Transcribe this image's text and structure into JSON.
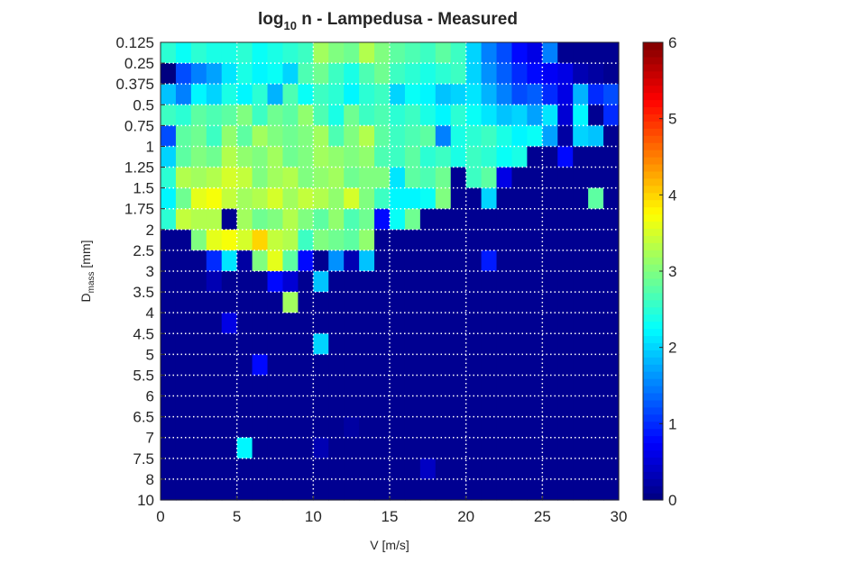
{
  "chart_data": {
    "type": "heatmap",
    "title": {
      "prefix": "log",
      "subscript": "10",
      "rest": " n - Lampedusa - Measured"
    },
    "xlabel": "V [m/s]",
    "ylabel": {
      "main": "D",
      "subscript": "mass",
      "rest": " [mm]"
    },
    "xlim": [
      0,
      30
    ],
    "xticks": [
      "0",
      "5",
      "10",
      "15",
      "20",
      "25",
      "30"
    ],
    "ylim": [
      0,
      22
    ],
    "y_bins": [
      "0.125",
      "0.25",
      "0.375",
      "0.5",
      "0.75",
      "1",
      "1.25",
      "1.5",
      "1.75",
      "2",
      "2.5",
      "3",
      "3.5",
      "4",
      "4.5",
      "5",
      "5.5",
      "6",
      "6.5",
      "7",
      "7.5",
      "8",
      "10"
    ],
    "x_bins": [
      0,
      1,
      2,
      3,
      4,
      5,
      6,
      7,
      8,
      9,
      10,
      11,
      12,
      13,
      14,
      15,
      16,
      17,
      18,
      19,
      20,
      21,
      22,
      23,
      24,
      25,
      26,
      27,
      28,
      29,
      30
    ],
    "grid": true,
    "colormap": "jet",
    "colorbar": {
      "min": 0,
      "max": 6,
      "ticks": [
        "0",
        "1",
        "2",
        "3",
        "4",
        "5",
        "6"
      ]
    },
    "colors": {
      "background": "#00007f",
      "axis": "#262626",
      "grid": "#ffffff"
    },
    "values": [
      [
        2.5,
        2.3,
        2.5,
        2.4,
        2.4,
        2.5,
        2.3,
        2.4,
        2.5,
        2.6,
        3.2,
        3.0,
        2.9,
        3.3,
        3.0,
        2.8,
        2.7,
        2.6,
        2.8,
        2.6,
        2.0,
        1.5,
        1.2,
        0.8,
        0.6,
        1.5,
        0.1,
        0.1,
        0.1,
        0.1
      ],
      [
        0.0,
        1.2,
        1.5,
        1.7,
        2.1,
        2.4,
        2.2,
        2.3,
        2.0,
        2.7,
        2.9,
        2.6,
        2.4,
        2.7,
        2.9,
        2.6,
        2.5,
        2.4,
        2.5,
        2.6,
        2.0,
        1.6,
        1.3,
        1.0,
        0.8,
        0.7,
        0.6,
        0.3,
        0.2,
        0.1
      ],
      [
        1.9,
        1.5,
        2.2,
        2.0,
        2.4,
        2.2,
        2.5,
        1.8,
        2.7,
        2.3,
        2.6,
        2.5,
        2.2,
        2.5,
        2.6,
        2.0,
        2.3,
        2.2,
        1.9,
        2.0,
        2.1,
        1.8,
        1.5,
        1.2,
        1.3,
        1.0,
        0.6,
        1.8,
        1.0,
        1.2
      ],
      [
        2.6,
        2.5,
        2.8,
        2.7,
        2.8,
        3.0,
        2.6,
        2.9,
        2.8,
        3.1,
        2.7,
        2.4,
        2.9,
        2.6,
        2.7,
        2.5,
        2.6,
        2.4,
        2.2,
        2.5,
        2.3,
        2.1,
        1.9,
        2.0,
        1.7,
        2.1,
        0.5,
        2.2,
        0.1,
        1.0
      ],
      [
        1.2,
        2.8,
        2.9,
        2.6,
        3.1,
        2.8,
        3.2,
        3.0,
        2.9,
        3.0,
        3.2,
        2.7,
        3.0,
        3.3,
        2.8,
        2.6,
        2.7,
        2.8,
        1.5,
        2.4,
        2.5,
        2.6,
        2.4,
        2.2,
        2.3,
        1.7,
        0.2,
        2.0,
        1.9,
        0.1
      ],
      [
        2.0,
        2.8,
        3.0,
        2.9,
        3.3,
        3.1,
        3.0,
        3.2,
        2.9,
        3.0,
        3.2,
        3.1,
        3.0,
        3.1,
        2.7,
        2.6,
        2.8,
        2.5,
        2.6,
        2.4,
        2.6,
        2.5,
        2.3,
        2.4,
        0.1,
        0.1,
        0.8,
        0.1,
        0.1,
        0.1
      ],
      [
        2.5,
        3.3,
        3.2,
        3.3,
        3.5,
        3.4,
        3.0,
        3.2,
        3.3,
        3.0,
        3.1,
        3.2,
        2.9,
        3.0,
        3.0,
        2.1,
        2.8,
        2.7,
        2.9,
        0.1,
        2.6,
        2.8,
        0.6,
        0.1,
        0.1,
        0.1,
        0.1,
        0.1,
        0.1,
        0.1
      ],
      [
        2.2,
        2.9,
        3.6,
        3.7,
        3.4,
        3.2,
        3.3,
        3.5,
        3.2,
        3.4,
        3.3,
        3.1,
        3.5,
        3.0,
        2.6,
        2.2,
        2.2,
        2.3,
        3.0,
        0.1,
        0.1,
        2.0,
        0.1,
        0.1,
        0.1,
        0.1,
        0.1,
        0.1,
        2.8,
        0.1
      ],
      [
        2.5,
        3.4,
        3.3,
        3.3,
        0.1,
        3.2,
        2.9,
        3.0,
        3.3,
        3.0,
        2.8,
        3.1,
        2.7,
        2.9,
        0.8,
        2.3,
        2.9,
        0.1,
        0.1,
        0.1,
        0.1,
        0.1,
        0.1,
        0.1,
        0.1,
        0.1,
        0.1,
        0.1,
        0.1,
        0.1
      ],
      [
        0.1,
        0.1,
        3.0,
        3.6,
        3.7,
        3.5,
        4.0,
        3.4,
        3.3,
        2.6,
        3.0,
        2.9,
        2.8,
        3.1,
        0.1,
        0.1,
        0.1,
        0.1,
        0.1,
        0.1,
        0.1,
        0.1,
        0.1,
        0.1,
        0.1,
        0.1,
        0.1,
        0.1,
        0.1,
        0.1
      ],
      [
        0.1,
        0.1,
        0.1,
        1.0,
        2.1,
        0.2,
        3.0,
        3.6,
        2.8,
        0.8,
        0.1,
        1.6,
        0.3,
        1.9,
        0.1,
        0.1,
        0.1,
        0.1,
        0.1,
        0.1,
        0.1,
        0.9,
        0.1,
        0.1,
        0.1,
        0.1,
        0.1,
        0.1,
        0.1,
        0.1
      ],
      [
        0.1,
        0.1,
        0.1,
        0.3,
        0.1,
        0.1,
        0.1,
        0.8,
        0.5,
        0.1,
        1.9,
        0.1,
        0.1,
        0.1,
        0.1,
        0.1,
        0.1,
        0.1,
        0.1,
        0.1,
        0.1,
        0.1,
        0.1,
        0.1,
        0.1,
        0.1,
        0.1,
        0.1,
        0.1,
        0.1
      ],
      [
        0.1,
        0.1,
        0.1,
        0.1,
        0.1,
        0.1,
        0.1,
        0.1,
        3.2,
        0.1,
        0.1,
        0.1,
        0.1,
        0.1,
        0.1,
        0.1,
        0.1,
        0.1,
        0.1,
        0.1,
        0.1,
        0.1,
        0.1,
        0.1,
        0.1,
        0.1,
        0.1,
        0.1,
        0.1,
        0.1
      ],
      [
        0.1,
        0.1,
        0.1,
        0.1,
        0.6,
        0.1,
        0.1,
        0.1,
        0.1,
        0.1,
        0.1,
        0.1,
        0.1,
        0.1,
        0.1,
        0.1,
        0.1,
        0.1,
        0.1,
        0.1,
        0.1,
        0.1,
        0.1,
        0.1,
        0.1,
        0.1,
        0.1,
        0.1,
        0.1,
        0.1
      ],
      [
        0.1,
        0.1,
        0.1,
        0.1,
        0.1,
        0.1,
        0.1,
        0.1,
        0.1,
        0.1,
        2.0,
        0.1,
        0.1,
        0.1,
        0.1,
        0.1,
        0.1,
        0.1,
        0.1,
        0.1,
        0.1,
        0.1,
        0.1,
        0.1,
        0.1,
        0.1,
        0.1,
        0.1,
        0.1,
        0.1
      ],
      [
        0.1,
        0.1,
        0.1,
        0.1,
        0.1,
        0.1,
        0.8,
        0.1,
        0.1,
        0.1,
        0.1,
        0.1,
        0.1,
        0.1,
        0.1,
        0.1,
        0.1,
        0.1,
        0.1,
        0.1,
        0.1,
        0.1,
        0.1,
        0.1,
        0.1,
        0.1,
        0.1,
        0.1,
        0.1,
        0.1
      ],
      [
        0.1,
        0.1,
        0.1,
        0.1,
        0.1,
        0.1,
        0.1,
        0.1,
        0.1,
        0.1,
        0.1,
        0.1,
        0.1,
        0.1,
        0.1,
        0.1,
        0.1,
        0.1,
        0.1,
        0.1,
        0.1,
        0.1,
        0.1,
        0.1,
        0.1,
        0.1,
        0.1,
        0.1,
        0.1,
        0.1
      ],
      [
        0.1,
        0.1,
        0.1,
        0.1,
        0.1,
        0.1,
        0.1,
        0.1,
        0.1,
        0.1,
        0.1,
        0.1,
        0.1,
        0.1,
        0.1,
        0.1,
        0.1,
        0.1,
        0.1,
        0.1,
        0.1,
        0.1,
        0.1,
        0.1,
        0.1,
        0.1,
        0.1,
        0.1,
        0.1,
        0.1
      ],
      [
        0.1,
        0.1,
        0.1,
        0.1,
        0.1,
        0.1,
        0.1,
        0.1,
        0.1,
        0.1,
        0.1,
        0.1,
        0.2,
        0.1,
        0.1,
        0.1,
        0.1,
        0.1,
        0.1,
        0.1,
        0.1,
        0.1,
        0.1,
        0.1,
        0.1,
        0.1,
        0.1,
        0.1,
        0.1,
        0.1
      ],
      [
        0.1,
        0.1,
        0.1,
        0.1,
        0.1,
        2.2,
        0.1,
        0.1,
        0.1,
        0.1,
        0.3,
        0.1,
        0.1,
        0.1,
        0.1,
        0.1,
        0.1,
        0.1,
        0.1,
        0.1,
        0.1,
        0.1,
        0.1,
        0.1,
        0.1,
        0.1,
        0.1,
        0.1,
        0.1,
        0.1
      ],
      [
        0.1,
        0.1,
        0.1,
        0.1,
        0.1,
        0.1,
        0.1,
        0.1,
        0.1,
        0.1,
        0.1,
        0.1,
        0.1,
        0.1,
        0.1,
        0.1,
        0.1,
        0.4,
        0.1,
        0.1,
        0.1,
        0.1,
        0.1,
        0.1,
        0.1,
        0.1,
        0.1,
        0.1,
        0.1,
        0.1
      ],
      [
        0.1,
        0.1,
        0.1,
        0.1,
        0.1,
        0.1,
        0.1,
        0.1,
        0.1,
        0.1,
        0.1,
        0.1,
        0.1,
        0.1,
        0.1,
        0.1,
        0.1,
        0.1,
        0.1,
        0.1,
        0.1,
        0.1,
        0.1,
        0.1,
        0.1,
        0.1,
        0.1,
        0.1,
        0.1,
        0.1
      ]
    ]
  }
}
